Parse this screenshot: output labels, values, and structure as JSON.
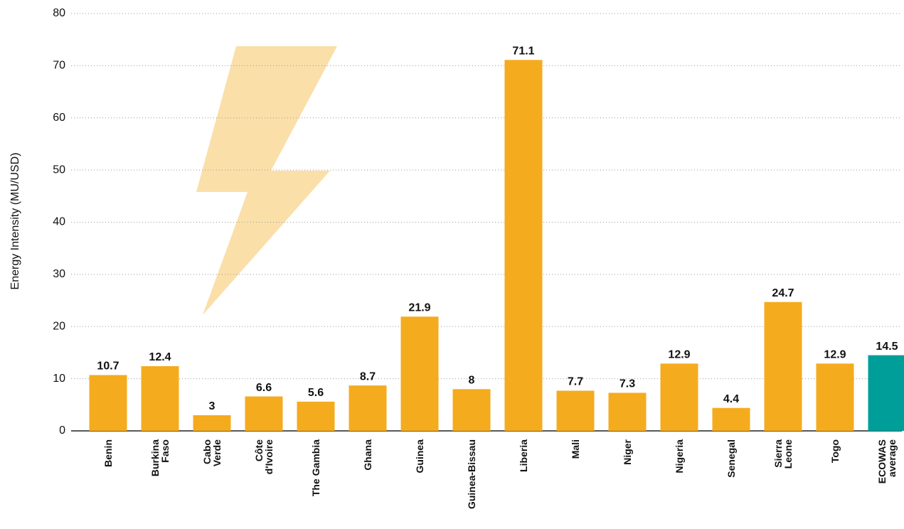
{
  "chart_data": {
    "type": "bar",
    "y_axis_label": "Energy Intensity (MU/USD)",
    "categories": [
      "Benin",
      "Burkina\nFaso",
      "Cabo\nVerde",
      "Côte\nd'Ivoire",
      "The Gambia",
      "Ghana",
      "Guinea",
      "Guinea-Bissau",
      "Liberia",
      "Mali",
      "Niger",
      "Nigeria",
      "Senegal",
      "Sierra\nLeone",
      "Togo",
      "ECOWAS\naverage"
    ],
    "values": [
      10.7,
      12.4,
      3,
      6.6,
      5.6,
      8.7,
      21.9,
      8,
      71.1,
      7.7,
      7.3,
      12.9,
      4.4,
      24.7,
      12.9,
      14.5
    ],
    "colors": [
      "#f5ab1e",
      "#f5ab1e",
      "#f5ab1e",
      "#f5ab1e",
      "#f5ab1e",
      "#f5ab1e",
      "#f5ab1e",
      "#f5ab1e",
      "#f5ab1e",
      "#f5ab1e",
      "#f5ab1e",
      "#f5ab1e",
      "#f5ab1e",
      "#f5ab1e",
      "#f5ab1e",
      "#009e99"
    ],
    "ylim": [
      0,
      80
    ],
    "yticks": [
      0,
      10,
      20,
      30,
      40,
      50,
      60,
      70,
      80
    ],
    "grid": true
  }
}
